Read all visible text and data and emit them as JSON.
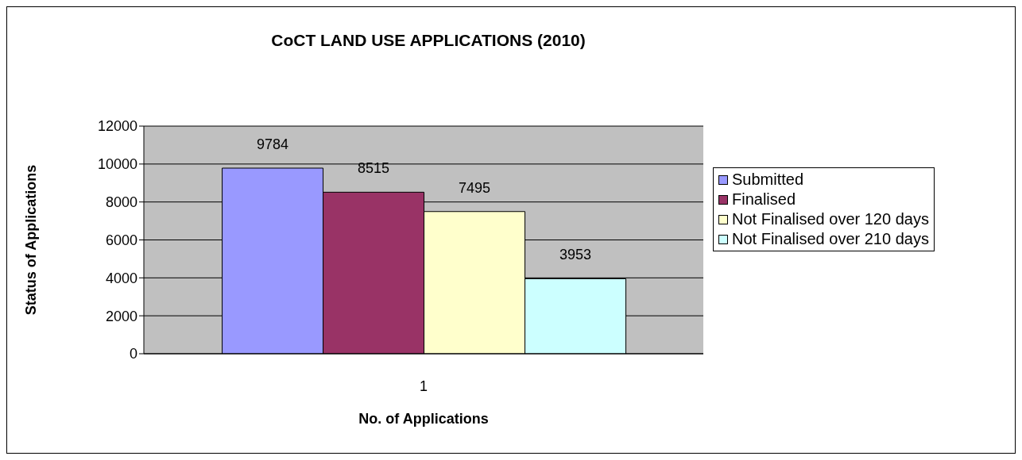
{
  "chart_data": {
    "type": "bar",
    "title": "CoCT LAND USE APPLICATIONS (2010)",
    "xlabel": "No. of Applications",
    "ylabel": "Status of Applications",
    "categories": [
      "1"
    ],
    "series": [
      {
        "name": "Submitted",
        "color": "#9999ff",
        "values": [
          9784
        ]
      },
      {
        "name": "Finalised",
        "color": "#993366",
        "values": [
          8515
        ]
      },
      {
        "name": "Not Finalised over 120 days",
        "color": "#ffffcc",
        "values": [
          7495
        ]
      },
      {
        "name": "Not Finalised over 210 days",
        "color": "#ccffff",
        "values": [
          3953
        ]
      }
    ],
    "ylim": [
      0,
      12000
    ],
    "yticks": [
      0,
      2000,
      4000,
      6000,
      8000,
      10000,
      12000
    ],
    "grid": "y",
    "legend": "right",
    "data_labels": true
  }
}
